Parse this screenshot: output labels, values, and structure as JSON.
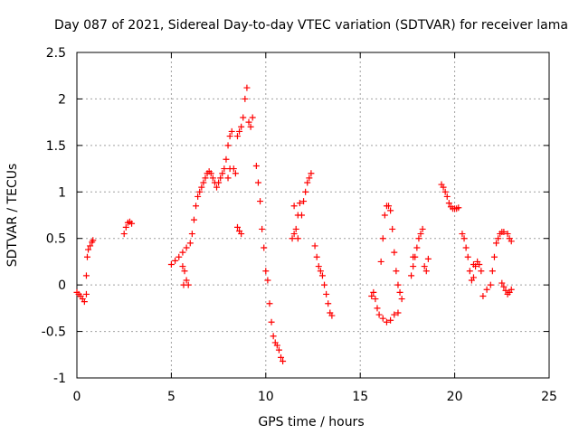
{
  "chart_data": {
    "type": "scatter",
    "title": "Day 087 of 2021, Sidereal Day-to-day VTEC variation (SDTVAR) for receiver lama",
    "xlabel": "GPS time / hours",
    "ylabel": "SDTVAR / TECUs",
    "xlim": [
      0,
      25
    ],
    "ylim": [
      -1,
      2.5
    ],
    "xticks": [
      0,
      5,
      10,
      15,
      20,
      25
    ],
    "xtick_labels": [
      "0",
      "5",
      "10",
      "15",
      "20",
      "25"
    ],
    "yticks": [
      -1,
      -0.5,
      0,
      0.5,
      1,
      1.5,
      2,
      2.5
    ],
    "ytick_labels": [
      "-1",
      "-0.5",
      "0",
      "0.5",
      "1",
      "1.5",
      "2",
      "2.5"
    ],
    "grid": true,
    "marker": "+",
    "color": "#ff0000",
    "series": [
      {
        "name": "seg-a",
        "points": [
          [
            0.0,
            -0.08
          ],
          [
            0.1,
            -0.1
          ],
          [
            0.2,
            -0.12
          ],
          [
            0.3,
            -0.15
          ],
          [
            0.4,
            -0.18
          ],
          [
            0.5,
            -0.1
          ],
          [
            0.5,
            0.1
          ],
          [
            0.55,
            0.3
          ],
          [
            0.6,
            0.38
          ],
          [
            0.7,
            0.42
          ],
          [
            0.8,
            0.46
          ],
          [
            0.85,
            0.48
          ]
        ]
      },
      {
        "name": "seg-b",
        "points": [
          [
            2.5,
            0.55
          ],
          [
            2.6,
            0.62
          ],
          [
            2.7,
            0.67
          ],
          [
            2.8,
            0.68
          ],
          [
            2.9,
            0.66
          ]
        ]
      },
      {
        "name": "seg-c",
        "points": [
          [
            5.0,
            0.22
          ],
          [
            5.2,
            0.26
          ],
          [
            5.4,
            0.3
          ],
          [
            5.6,
            0.35
          ],
          [
            5.8,
            0.4
          ],
          [
            6.0,
            0.45
          ],
          [
            5.6,
            0.2
          ],
          [
            5.7,
            0.15
          ],
          [
            5.8,
            0.05
          ],
          [
            5.9,
            0.0
          ],
          [
            5.65,
            0.0
          ]
        ]
      },
      {
        "name": "seg-d",
        "points": [
          [
            6.1,
            0.55
          ],
          [
            6.2,
            0.7
          ],
          [
            6.3,
            0.85
          ],
          [
            6.4,
            0.95
          ],
          [
            6.5,
            1.0
          ],
          [
            6.6,
            1.05
          ],
          [
            6.7,
            1.1
          ],
          [
            6.8,
            1.15
          ],
          [
            6.9,
            1.2
          ],
          [
            7.0,
            1.22
          ],
          [
            7.1,
            1.2
          ],
          [
            7.2,
            1.15
          ],
          [
            7.3,
            1.1
          ],
          [
            7.4,
            1.05
          ],
          [
            7.5,
            1.1
          ],
          [
            7.6,
            1.15
          ],
          [
            7.7,
            1.2
          ],
          [
            7.8,
            1.25
          ],
          [
            7.9,
            1.35
          ],
          [
            8.0,
            1.5
          ],
          [
            8.1,
            1.6
          ],
          [
            8.2,
            1.65
          ],
          [
            8.1,
            1.25
          ],
          [
            8.0,
            1.15
          ]
        ]
      },
      {
        "name": "seg-e",
        "points": [
          [
            8.3,
            1.25
          ],
          [
            8.4,
            1.2
          ],
          [
            8.5,
            1.6
          ],
          [
            8.6,
            1.65
          ],
          [
            8.7,
            1.7
          ],
          [
            8.8,
            1.8
          ],
          [
            8.9,
            2.0
          ],
          [
            9.0,
            2.12
          ],
          [
            9.1,
            1.75
          ],
          [
            9.2,
            1.7
          ],
          [
            9.3,
            1.8
          ],
          [
            8.5,
            0.62
          ],
          [
            8.6,
            0.58
          ],
          [
            8.7,
            0.55
          ]
        ]
      },
      {
        "name": "seg-f",
        "points": [
          [
            9.5,
            1.28
          ],
          [
            9.6,
            1.1
          ],
          [
            9.7,
            0.9
          ],
          [
            9.8,
            0.6
          ],
          [
            9.9,
            0.4
          ],
          [
            10.0,
            0.15
          ],
          [
            10.1,
            0.05
          ],
          [
            10.2,
            -0.2
          ],
          [
            10.3,
            -0.4
          ],
          [
            10.4,
            -0.55
          ],
          [
            10.5,
            -0.62
          ],
          [
            10.6,
            -0.65
          ],
          [
            10.7,
            -0.7
          ],
          [
            10.8,
            -0.78
          ],
          [
            10.9,
            -0.82
          ]
        ]
      },
      {
        "name": "seg-g",
        "points": [
          [
            11.4,
            0.5
          ],
          [
            11.5,
            0.55
          ],
          [
            11.6,
            0.6
          ],
          [
            11.7,
            0.75
          ],
          [
            11.8,
            0.88
          ],
          [
            11.5,
            0.85
          ],
          [
            11.7,
            0.5
          ],
          [
            11.9,
            0.75
          ],
          [
            12.0,
            0.9
          ],
          [
            12.1,
            1.0
          ],
          [
            12.2,
            1.1
          ],
          [
            12.3,
            1.15
          ],
          [
            12.4,
            1.2
          ]
        ]
      },
      {
        "name": "seg-h",
        "points": [
          [
            12.6,
            0.42
          ],
          [
            12.7,
            0.3
          ],
          [
            12.8,
            0.2
          ],
          [
            12.9,
            0.15
          ],
          [
            13.0,
            0.1
          ],
          [
            13.1,
            0.0
          ],
          [
            13.2,
            -0.1
          ],
          [
            13.3,
            -0.2
          ],
          [
            13.4,
            -0.3
          ],
          [
            13.5,
            -0.33
          ]
        ]
      },
      {
        "name": "seg-i",
        "points": [
          [
            15.6,
            -0.12
          ],
          [
            15.7,
            -0.08
          ],
          [
            15.8,
            -0.15
          ],
          [
            15.9,
            -0.25
          ],
          [
            16.0,
            -0.32
          ],
          [
            16.1,
            0.25
          ],
          [
            16.2,
            0.5
          ],
          [
            16.3,
            0.75
          ],
          [
            16.4,
            0.85
          ],
          [
            16.5,
            0.85
          ],
          [
            16.6,
            0.8
          ],
          [
            16.7,
            0.6
          ],
          [
            16.8,
            0.35
          ],
          [
            16.9,
            0.15
          ],
          [
            17.0,
            0.0
          ],
          [
            17.1,
            -0.08
          ],
          [
            17.2,
            -0.15
          ],
          [
            17.0,
            -0.3
          ],
          [
            16.8,
            -0.32
          ],
          [
            16.6,
            -0.38
          ],
          [
            16.4,
            -0.4
          ],
          [
            16.2,
            -0.36
          ]
        ]
      },
      {
        "name": "seg-j",
        "points": [
          [
            17.7,
            0.1
          ],
          [
            17.8,
            0.2
          ],
          [
            17.9,
            0.3
          ],
          [
            18.0,
            0.4
          ],
          [
            18.1,
            0.5
          ],
          [
            18.2,
            0.55
          ],
          [
            18.3,
            0.6
          ],
          [
            18.4,
            0.2
          ],
          [
            18.5,
            0.15
          ],
          [
            17.8,
            0.3
          ],
          [
            18.6,
            0.28
          ]
        ]
      },
      {
        "name": "seg-k",
        "points": [
          [
            19.3,
            1.08
          ],
          [
            19.4,
            1.05
          ],
          [
            19.5,
            1.0
          ],
          [
            19.6,
            0.95
          ],
          [
            19.7,
            0.88
          ],
          [
            19.8,
            0.84
          ],
          [
            19.9,
            0.82
          ],
          [
            20.0,
            0.82
          ],
          [
            20.1,
            0.82
          ],
          [
            20.2,
            0.83
          ]
        ]
      },
      {
        "name": "seg-l",
        "points": [
          [
            20.4,
            0.55
          ],
          [
            20.5,
            0.5
          ],
          [
            20.6,
            0.4
          ],
          [
            20.7,
            0.3
          ],
          [
            20.8,
            0.15
          ],
          [
            20.9,
            0.05
          ],
          [
            21.0,
            0.08
          ],
          [
            21.1,
            0.2
          ],
          [
            21.2,
            0.25
          ],
          [
            21.3,
            0.22
          ],
          [
            21.4,
            0.15
          ],
          [
            21.0,
            0.22
          ]
        ]
      },
      {
        "name": "seg-m",
        "points": [
          [
            21.5,
            -0.12
          ],
          [
            21.7,
            -0.05
          ],
          [
            21.9,
            0.0
          ],
          [
            22.0,
            0.15
          ],
          [
            22.1,
            0.3
          ],
          [
            22.2,
            0.45
          ],
          [
            22.3,
            0.5
          ],
          [
            22.4,
            0.55
          ],
          [
            22.5,
            0.57
          ],
          [
            22.6,
            0.57
          ],
          [
            22.8,
            0.55
          ],
          [
            22.9,
            0.5
          ],
          [
            23.0,
            0.47
          ],
          [
            22.5,
            0.02
          ],
          [
            22.6,
            -0.02
          ],
          [
            22.7,
            -0.06
          ],
          [
            22.8,
            -0.1
          ],
          [
            22.9,
            -0.08
          ],
          [
            23.0,
            -0.05
          ]
        ]
      }
    ]
  }
}
